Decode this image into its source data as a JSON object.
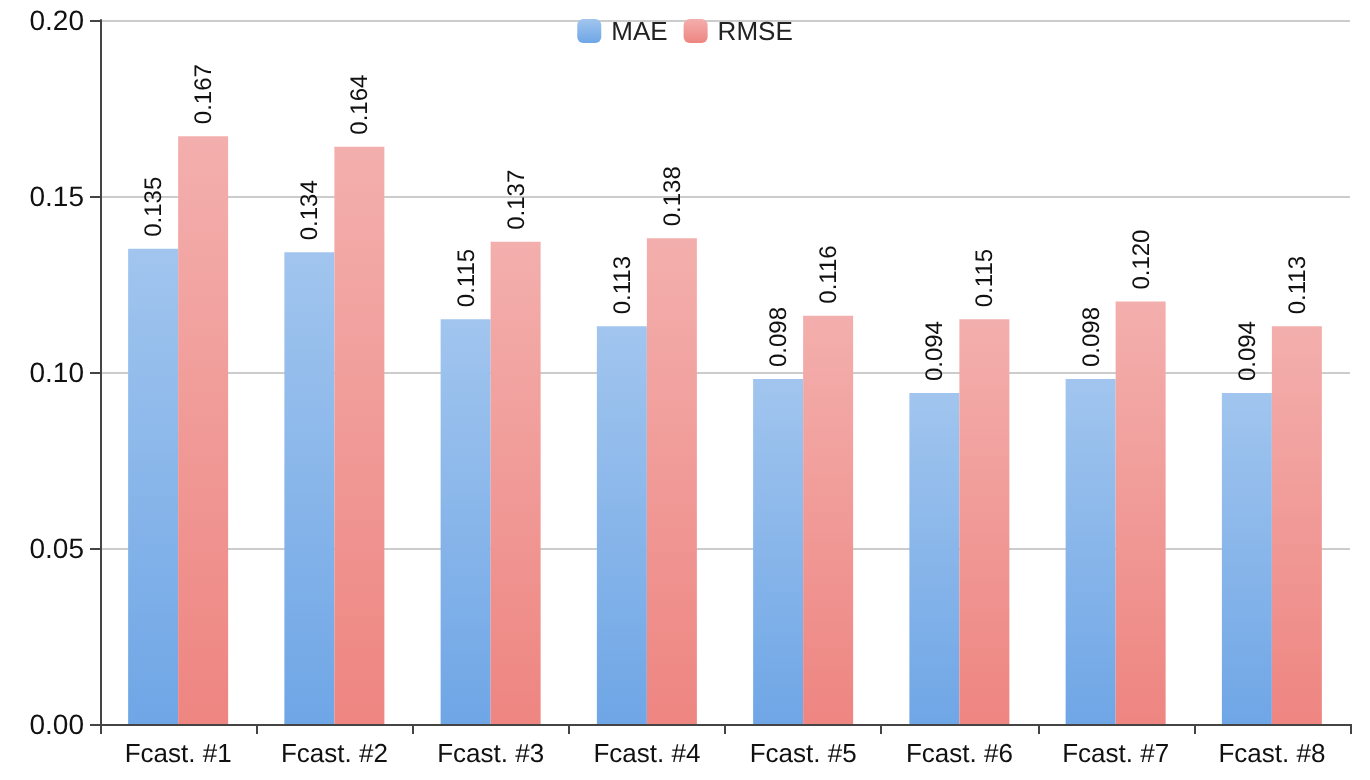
{
  "chart_data": {
    "type": "bar",
    "categories": [
      "Fcast. #1",
      "Fcast. #2",
      "Fcast. #3",
      "Fcast. #4",
      "Fcast. #5",
      "Fcast. #6",
      "Fcast. #7",
      "Fcast. #8"
    ],
    "series": [
      {
        "name": "MAE",
        "color": "#6fa6e6",
        "values": [
          0.135,
          0.134,
          0.115,
          0.113,
          0.098,
          0.094,
          0.098,
          0.094
        ],
        "value_labels": [
          "0.135",
          "0.134",
          "0.115",
          "0.113",
          "0.098",
          "0.094",
          "0.098",
          "0.094"
        ]
      },
      {
        "name": "RMSE",
        "color": "#ee8581",
        "values": [
          0.167,
          0.164,
          0.137,
          0.138,
          0.116,
          0.115,
          0.12,
          0.113
        ],
        "value_labels": [
          "0.167",
          "0.164",
          "0.137",
          "0.138",
          "0.116",
          "0.115",
          "0.120",
          "0.113"
        ]
      }
    ],
    "ylim": [
      0,
      0.2
    ],
    "yticks": [
      {
        "value": 0,
        "label": "0.00"
      },
      {
        "value": 0.05,
        "label": "0.05"
      },
      {
        "value": 0.1,
        "label": "0.10"
      },
      {
        "value": 0.15,
        "label": "0.15"
      },
      {
        "value": 0.2,
        "label": "0.20"
      }
    ],
    "grid": "y",
    "legend": "top"
  }
}
